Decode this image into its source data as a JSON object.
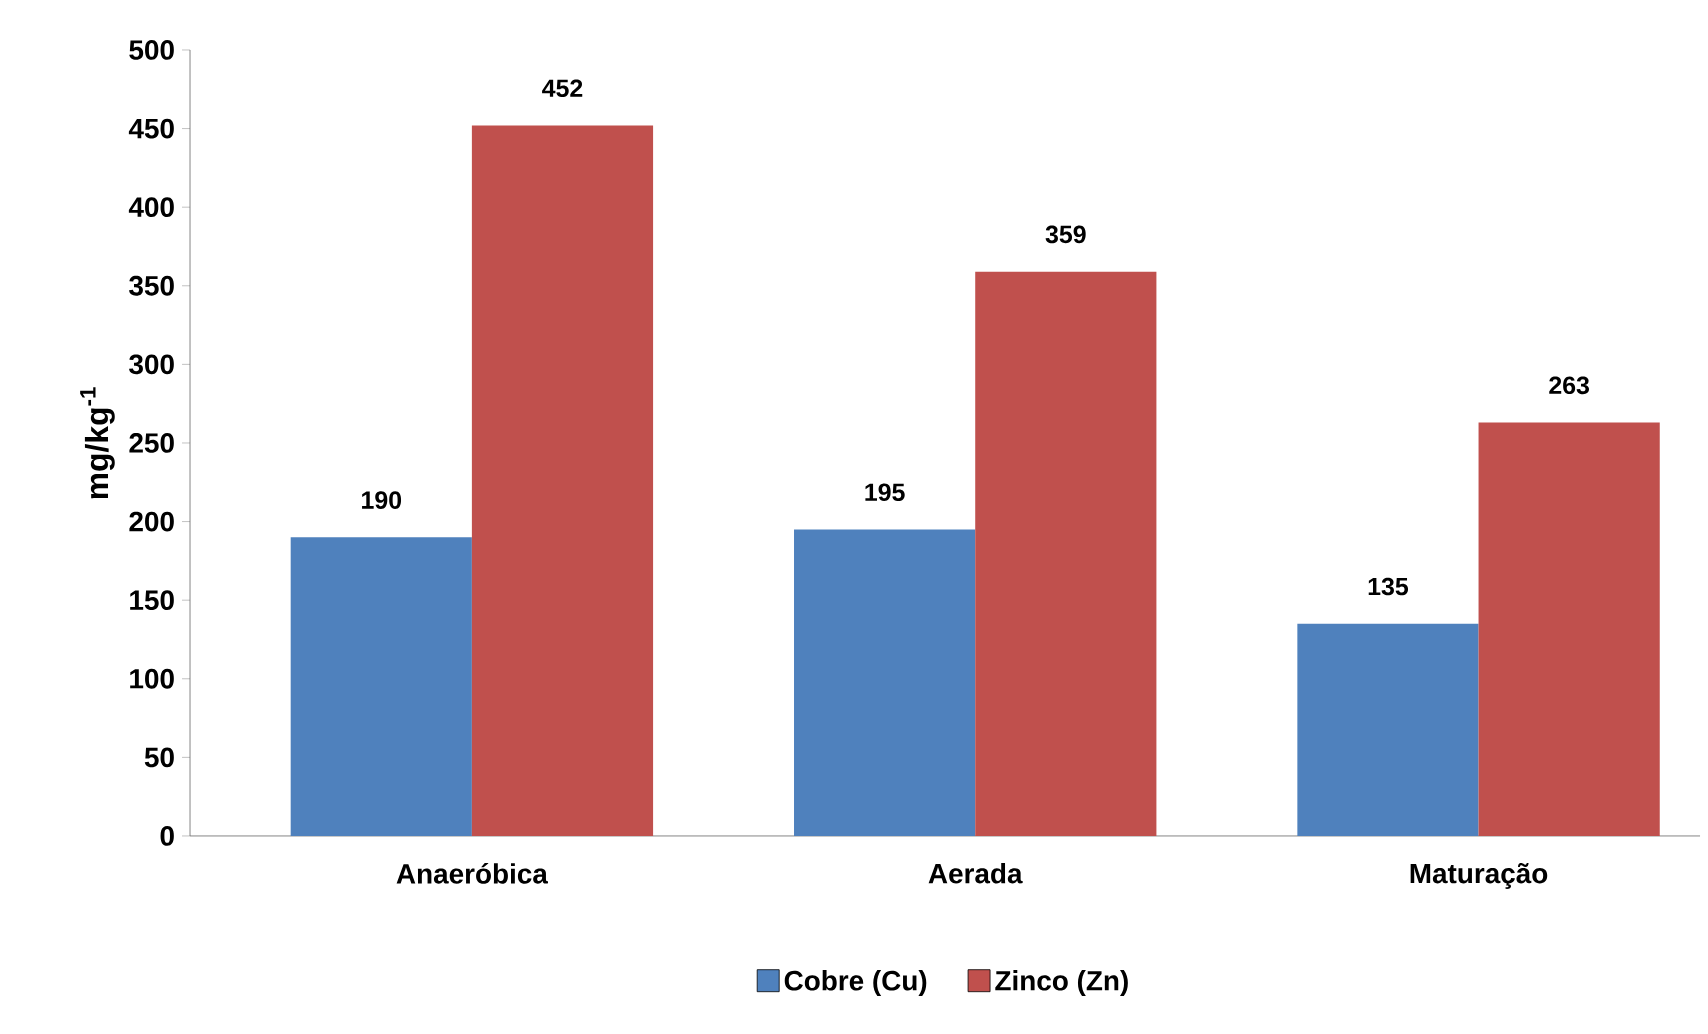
{
  "chart_data": {
    "type": "bar",
    "ylabel": "mg/kg$^{-1}$",
    "categories": [
      "Anaeróbica",
      "Aerada",
      "Maturação"
    ],
    "series": [
      {
        "name": "Cobre (Cu)",
        "color": "#4f81bd",
        "values": [
          190,
          195,
          135
        ]
      },
      {
        "name": "Zinco (Zn)",
        "color": "#c0504d",
        "values": [
          452,
          359,
          263
        ]
      }
    ],
    "ylim": [
      0,
      500
    ],
    "yticks": [
      0,
      50,
      100,
      150,
      200,
      250,
      300,
      350,
      400,
      450,
      500
    ],
    "data_labels": true,
    "grid": false,
    "legend": "bottom"
  }
}
